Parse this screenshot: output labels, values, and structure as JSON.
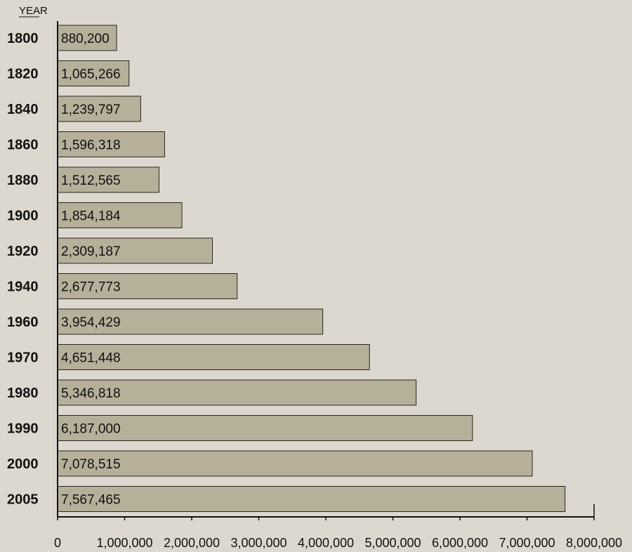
{
  "chart_data": {
    "type": "bar",
    "orientation": "horizontal",
    "ylabel": "YEAR",
    "xlabel": "",
    "categories": [
      "1800",
      "1820",
      "1840",
      "1860",
      "1880",
      "1900",
      "1920",
      "1940",
      "1960",
      "1970",
      "1980",
      "1990",
      "2000",
      "2005"
    ],
    "values": [
      880200,
      1065266,
      1239797,
      1596318,
      1512565,
      1854184,
      2309187,
      2677773,
      3954429,
      4651448,
      5346818,
      6187000,
      7078515,
      7567465
    ],
    "value_labels": [
      "880,200",
      "1,065,266",
      "1,239,797",
      "1,596,318",
      "1,512,565",
      "1,854,184",
      "2,309,187",
      "2,677,773",
      "3,954,429",
      "4,651,448",
      "5,346,818",
      "6,187,000",
      "7,078,515",
      "7,567,465"
    ],
    "xlim": [
      0,
      8000000
    ],
    "xticks": [
      0,
      1000000,
      2000000,
      3000000,
      4000000,
      5000000,
      6000000,
      7000000,
      8000000
    ],
    "xtick_labels": [
      "0",
      "1,000,000",
      "2,000,000",
      "3,000,000",
      "4,000,000",
      "5,000,000",
      "6,000,000",
      "7,000,000",
      "8,000,000"
    ],
    "grid": false,
    "colors": {
      "bar": "#b6af99",
      "background": "#dcd8cf"
    }
  }
}
